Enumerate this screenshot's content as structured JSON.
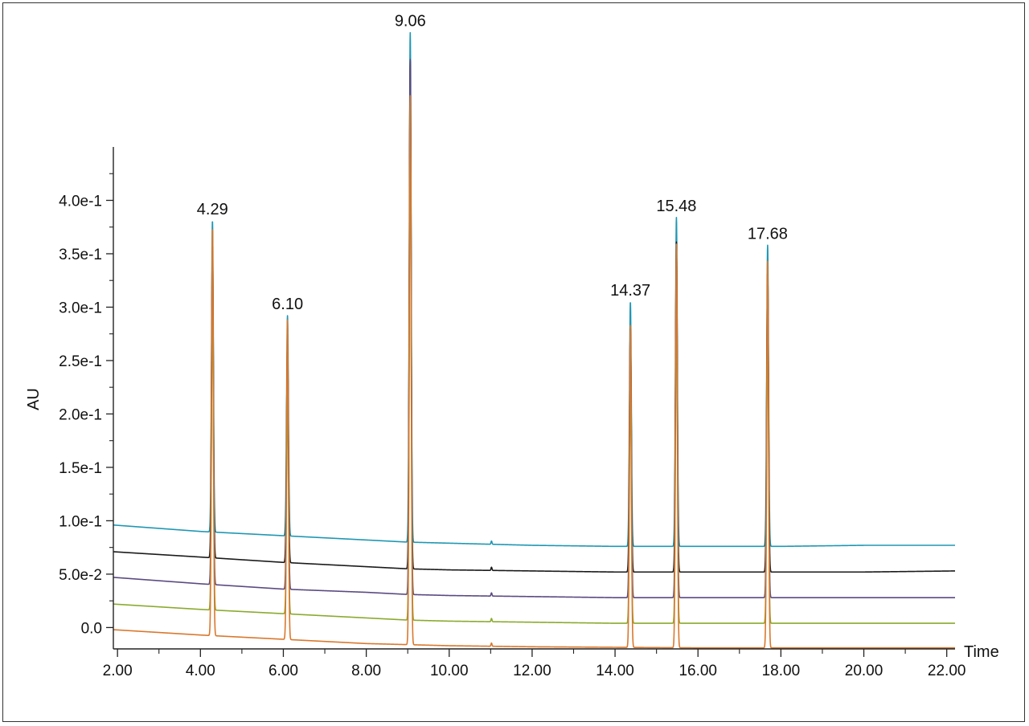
{
  "chart_data": {
    "type": "line",
    "title": "",
    "xlabel": "Time",
    "ylabel": "AU",
    "xlim": [
      1.9,
      22.2
    ],
    "ylim": [
      -0.02,
      0.45
    ],
    "x_ticks": [
      "2.00",
      "4.00",
      "6.00",
      "8.00",
      "10.00",
      "12.00",
      "14.00",
      "16.00",
      "18.00",
      "20.00",
      "22.00"
    ],
    "x_tick_values": [
      2,
      4,
      6,
      8,
      10,
      12,
      14,
      16,
      18,
      20,
      22
    ],
    "y_ticks": [
      "0.0",
      "5.0e-2",
      "1.0e-1",
      "1.5e-1",
      "2.0e-1",
      "2.5e-1",
      "3.0e-1",
      "3.5e-1",
      "4.0e-1"
    ],
    "y_tick_values": [
      0,
      0.05,
      0.1,
      0.15,
      0.2,
      0.25,
      0.3,
      0.35,
      0.4
    ],
    "grid": false,
    "legend": "none",
    "peaks": [
      {
        "label": "4.29",
        "x": 4.29
      },
      {
        "label": "6.10",
        "x": 6.1
      },
      {
        "label": "9.06",
        "x": 9.06
      },
      {
        "label": "14.37",
        "x": 14.37
      },
      {
        "label": "15.48",
        "x": 15.48
      },
      {
        "label": "17.68",
        "x": 17.68
      }
    ],
    "series": [
      {
        "color": "#d9782d",
        "x": [
          1.9,
          4,
          6,
          8,
          9,
          10,
          12,
          14,
          16,
          18,
          20,
          22.2
        ],
        "y": [
          -0.002,
          -0.007,
          -0.011,
          -0.015,
          -0.016,
          -0.017,
          -0.018,
          -0.0185,
          -0.019,
          -0.019,
          -0.019,
          -0.019
        ],
        "peak_heights": [
          0.374,
          0.288,
          0.498,
          0.284,
          0.359,
          0.343
        ]
      },
      {
        "color": "#8aaa2f",
        "x": [
          1.9,
          4,
          6,
          8,
          9,
          10,
          12,
          14,
          16,
          18,
          20,
          22.2
        ],
        "y": [
          0.022,
          0.017,
          0.013,
          0.009,
          0.007,
          0.006,
          0.005,
          0.004,
          0.004,
          0.004,
          0.004,
          0.004
        ],
        "peak_heights": [
          0.312,
          0.221,
          0.488,
          0.232,
          0.313,
          0.286
        ]
      },
      {
        "color": "#5a4a82",
        "x": [
          1.9,
          4,
          6,
          8,
          9,
          10,
          12,
          14,
          16,
          18,
          20,
          22.2
        ],
        "y": [
          0.047,
          0.041,
          0.036,
          0.033,
          0.031,
          0.03,
          0.029,
          0.028,
          0.028,
          0.028,
          0.028,
          0.028
        ],
        "peak_heights": [
          0.345,
          0.262,
          0.532,
          0.278,
          0.348,
          0.318
        ]
      },
      {
        "color": "#1a1a1a",
        "x": [
          1.9,
          4,
          6,
          8,
          9,
          10,
          12,
          14,
          16,
          18,
          20,
          22.2
        ],
        "y": [
          0.071,
          0.066,
          0.061,
          0.057,
          0.055,
          0.054,
          0.053,
          0.052,
          0.052,
          0.052,
          0.052,
          0.053
        ],
        "peak_heights": [
          0.358,
          0.268,
          0.531,
          0.281,
          0.361,
          0.334
        ]
      },
      {
        "color": "#1f97b3",
        "x": [
          1.9,
          4,
          6,
          8,
          9,
          10,
          12,
          14,
          16,
          18,
          20,
          22.2
        ],
        "y": [
          0.096,
          0.09,
          0.086,
          0.082,
          0.08,
          0.079,
          0.077,
          0.076,
          0.076,
          0.076,
          0.077,
          0.077
        ],
        "peak_heights": [
          0.381,
          0.292,
          0.557,
          0.305,
          0.384,
          0.358
        ]
      }
    ]
  }
}
